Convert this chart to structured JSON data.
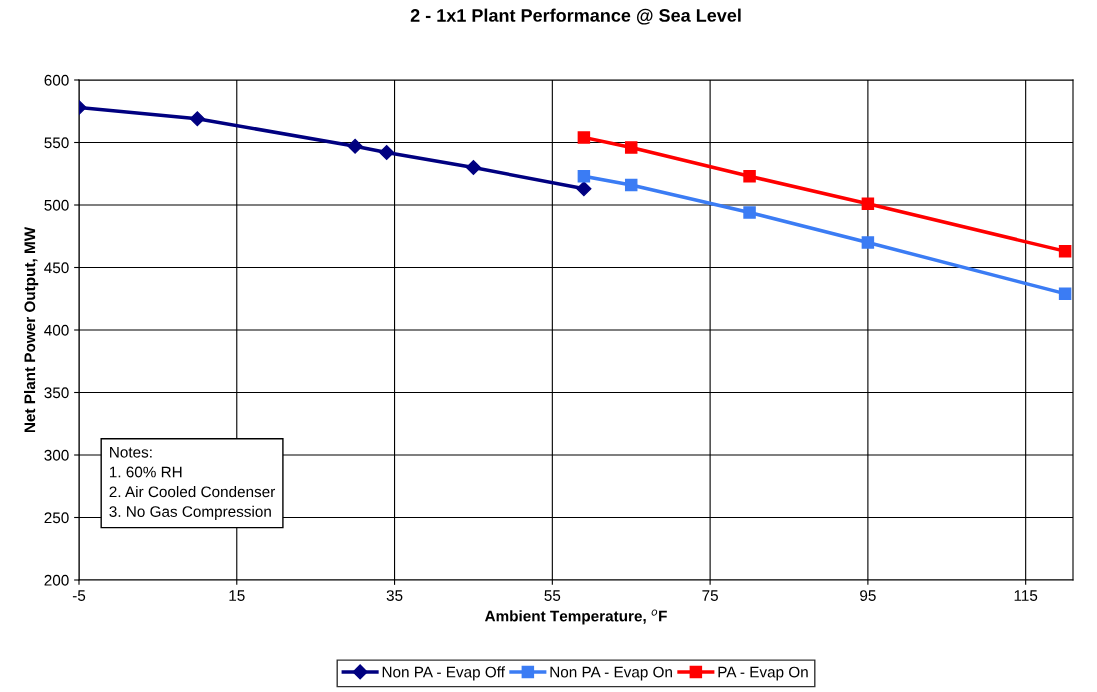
{
  "chart_data": {
    "type": "line",
    "title": "2 - 1x1 Plant Performance @ Sea Level",
    "xlabel": "Ambient Temperature, $^{o}$F",
    "ylabel": "Net Plant Power Output, MW",
    "xlim": [
      -5,
      121
    ],
    "xticks": [
      -5,
      15,
      35,
      55,
      75,
      95,
      115
    ],
    "ylim": [
      200,
      600
    ],
    "yticks": [
      200,
      250,
      300,
      350,
      400,
      450,
      500,
      550,
      600
    ],
    "grid": true,
    "legend": "bottom",
    "line_style": "solid",
    "series": [
      {
        "name": "Non PA - Evap Off",
        "color": "#000080",
        "marker": "diamond",
        "x": [
          -5,
          10,
          30,
          34,
          45,
          59
        ],
        "values": [
          578,
          569,
          547,
          542,
          530,
          513
        ]
      },
      {
        "name": "Non PA - Evap On",
        "color": "#3b7cf4",
        "marker": "square",
        "x": [
          59,
          65,
          80,
          95,
          120
        ],
        "values": [
          523,
          516,
          494,
          470,
          429
        ]
      },
      {
        "name": "PA - Evap On",
        "color": "#ff0000",
        "marker": "square",
        "x": [
          59,
          65,
          80,
          95,
          120
        ],
        "values": [
          554,
          546,
          523,
          501,
          463
        ]
      }
    ],
    "annotations": [
      "Notes:",
      "1. 60% RH",
      "2. Air Cooled Condenser",
      "3. No Gas Compression"
    ]
  }
}
